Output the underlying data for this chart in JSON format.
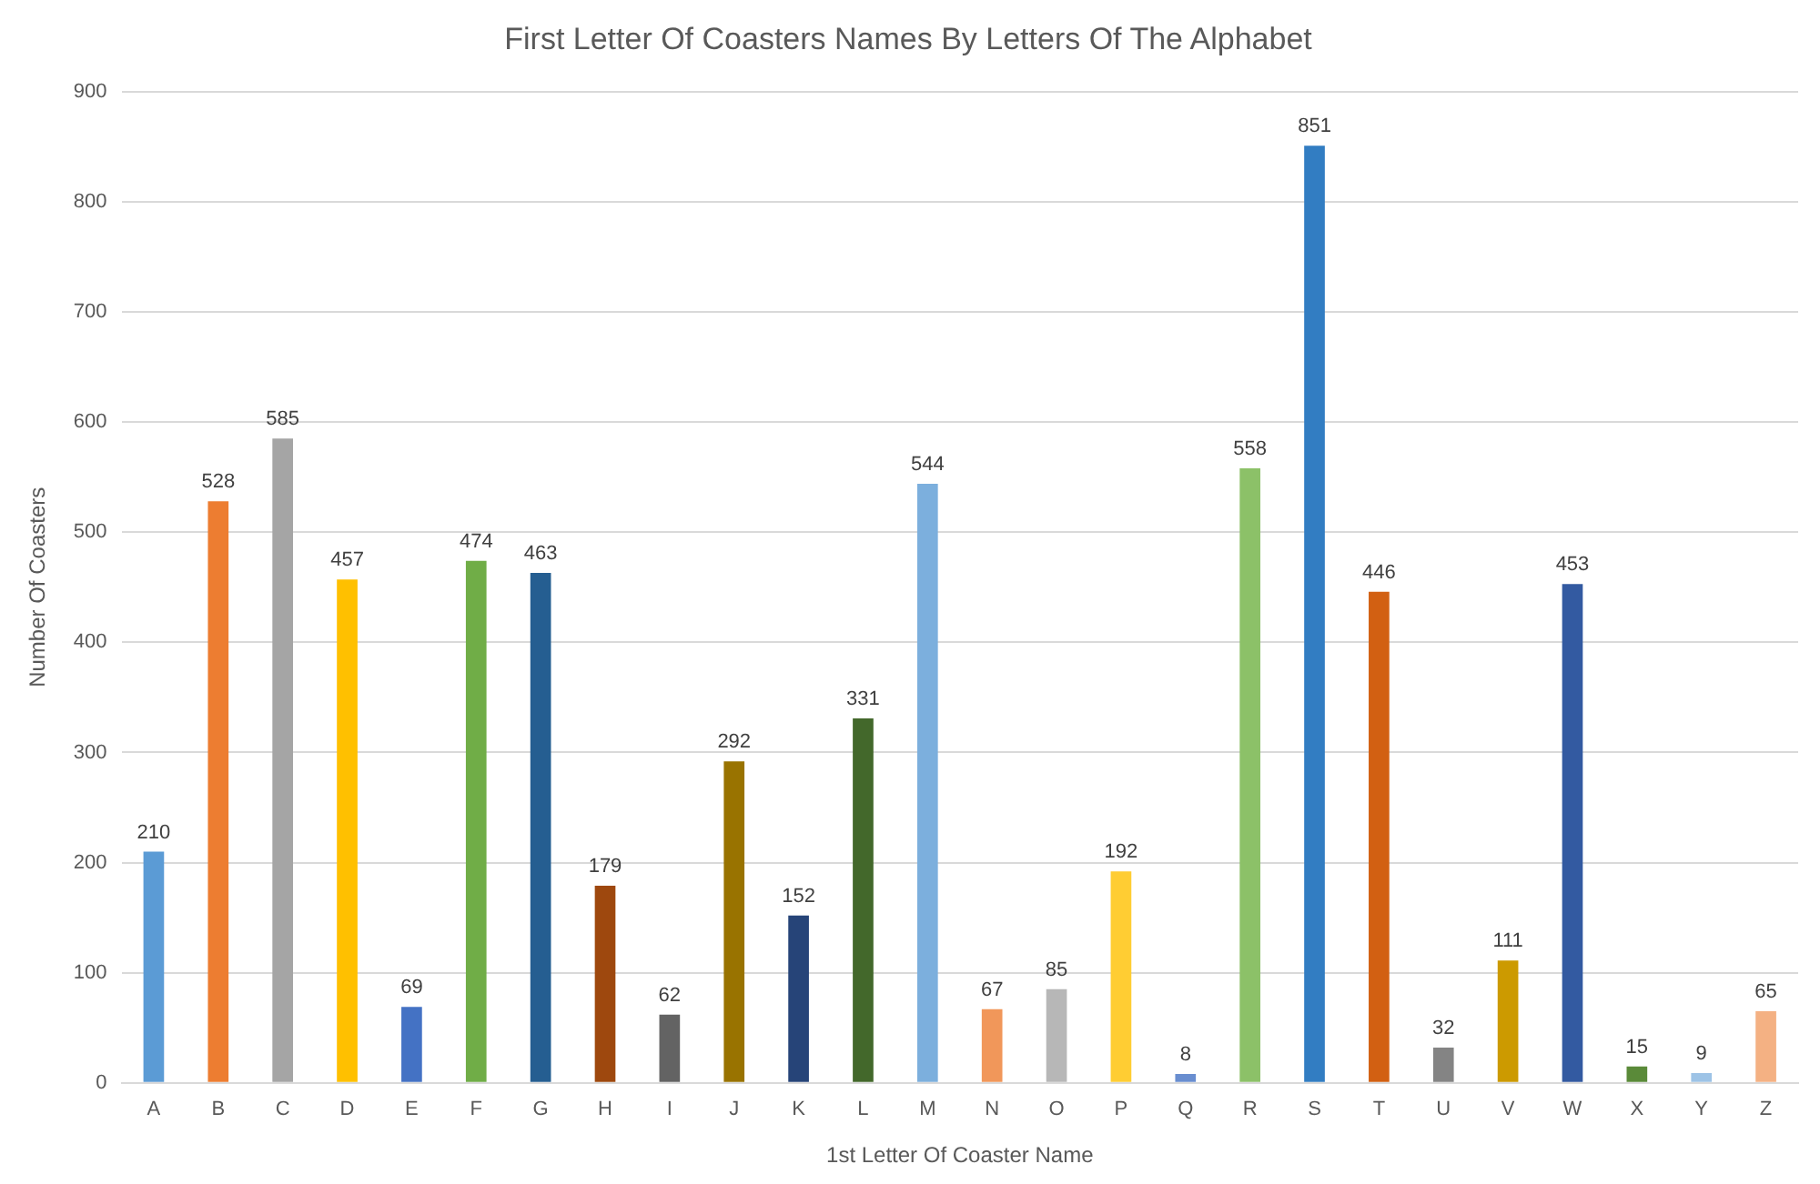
{
  "chart_data": {
    "type": "bar",
    "title": "First Letter Of Coasters Names By Letters Of The Alphabet",
    "xlabel": "1st Letter Of Coaster Name",
    "ylabel": "Number Of Coasters",
    "categories": [
      "A",
      "B",
      "C",
      "D",
      "E",
      "F",
      "G",
      "H",
      "I",
      "J",
      "K",
      "L",
      "M",
      "N",
      "O",
      "P",
      "Q",
      "R",
      "S",
      "T",
      "U",
      "V",
      "W",
      "X",
      "Y",
      "Z"
    ],
    "values": [
      210,
      528,
      585,
      457,
      69,
      474,
      463,
      179,
      62,
      292,
      152,
      331,
      544,
      67,
      85,
      192,
      8,
      558,
      851,
      446,
      32,
      111,
      453,
      15,
      9,
      65
    ],
    "colors": [
      "#5b9bd5",
      "#ed7d31",
      "#a5a5a5",
      "#ffc000",
      "#4472c4",
      "#70ad47",
      "#255e91",
      "#9e480e",
      "#636363",
      "#997300",
      "#264478",
      "#43682b",
      "#7cafdd",
      "#f1975a",
      "#b7b7b7",
      "#ffcd33",
      "#698ed0",
      "#8cc168",
      "#327dc2",
      "#d26012",
      "#848484",
      "#cc9a00",
      "#335aa1",
      "#5a8a39",
      "#9dc3e6",
      "#f4b183"
    ],
    "ylim": [
      0,
      900
    ],
    "yticks": [
      0,
      100,
      200,
      300,
      400,
      500,
      600,
      700,
      800,
      900
    ],
    "grid": "y",
    "legend": false,
    "data_labels": true
  }
}
